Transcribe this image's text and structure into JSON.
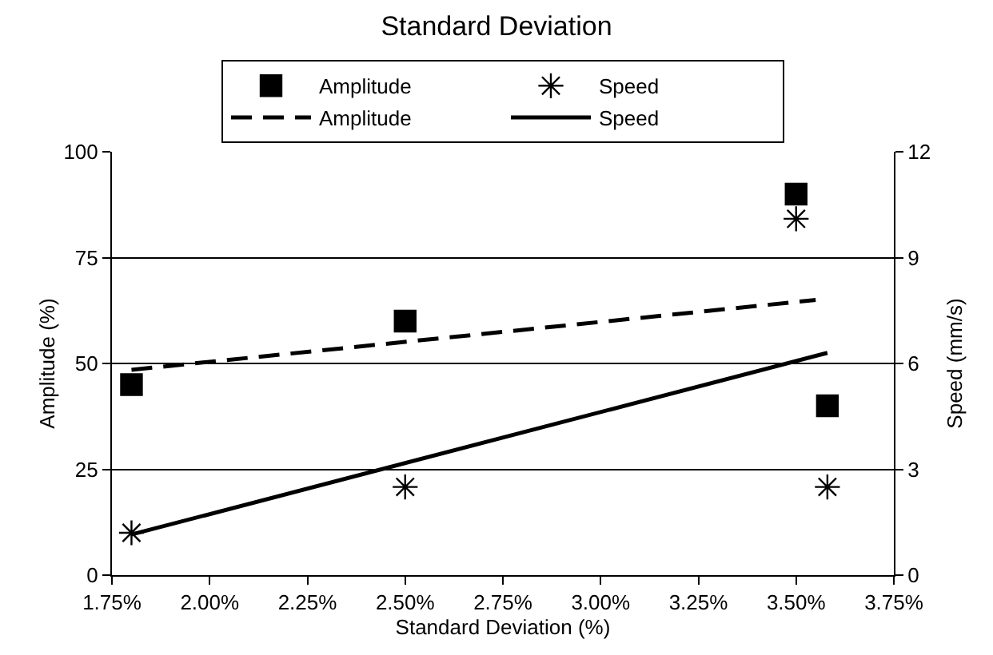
{
  "chart_data": {
    "type": "scatter",
    "title": "Standard Deviation",
    "xlabel": "Standard Deviation (%)",
    "ylabel": "Amplitude (%)",
    "y2label": "Speed (mm/s)",
    "xlim": [
      1.75,
      3.75
    ],
    "xticks": [
      {
        "value": 1.75,
        "label": "1.75%"
      },
      {
        "value": 2.0,
        "label": "2.00%"
      },
      {
        "value": 2.25,
        "label": "2.25%"
      },
      {
        "value": 2.5,
        "label": "2.50%"
      },
      {
        "value": 2.75,
        "label": "2.75%"
      },
      {
        "value": 3.0,
        "label": "3.00%"
      },
      {
        "value": 3.25,
        "label": "3.25%"
      },
      {
        "value": 3.5,
        "label": "3.50%"
      },
      {
        "value": 3.75,
        "label": "3.75%"
      }
    ],
    "ylim": [
      0,
      100
    ],
    "yticks": [
      0,
      25,
      50,
      75,
      100
    ],
    "y2lim": [
      0,
      12
    ],
    "y2ticks": [
      0,
      3,
      6,
      9,
      12
    ],
    "grid": "y",
    "legend": "top",
    "series": [
      {
        "name": "Amplitude",
        "type": "scatter",
        "marker": "square",
        "color": "#000000",
        "x": [
          1.8,
          2.5,
          3.5,
          3.58
        ],
        "values": [
          45,
          60,
          90,
          40
        ]
      },
      {
        "name": "Speed",
        "type": "scatter",
        "marker": "cross",
        "axis": "y2",
        "color": "#000000",
        "x": [
          1.8,
          2.5,
          3.5,
          3.58
        ],
        "values": [
          1.2,
          2.5,
          10.1,
          2.5
        ]
      },
      {
        "name": "Amplitude",
        "type": "line",
        "line_style": "dashed",
        "marker": "none",
        "color": "#000000",
        "x": [
          1.8,
          3.55
        ],
        "values": [
          48.5,
          65
        ]
      },
      {
        "name": "Speed",
        "type": "line",
        "line_style": "solid",
        "marker": "none",
        "axis": "y2",
        "color": "#000000",
        "x": [
          1.8,
          3.58
        ],
        "values": [
          1.15,
          6.3
        ]
      }
    ]
  }
}
